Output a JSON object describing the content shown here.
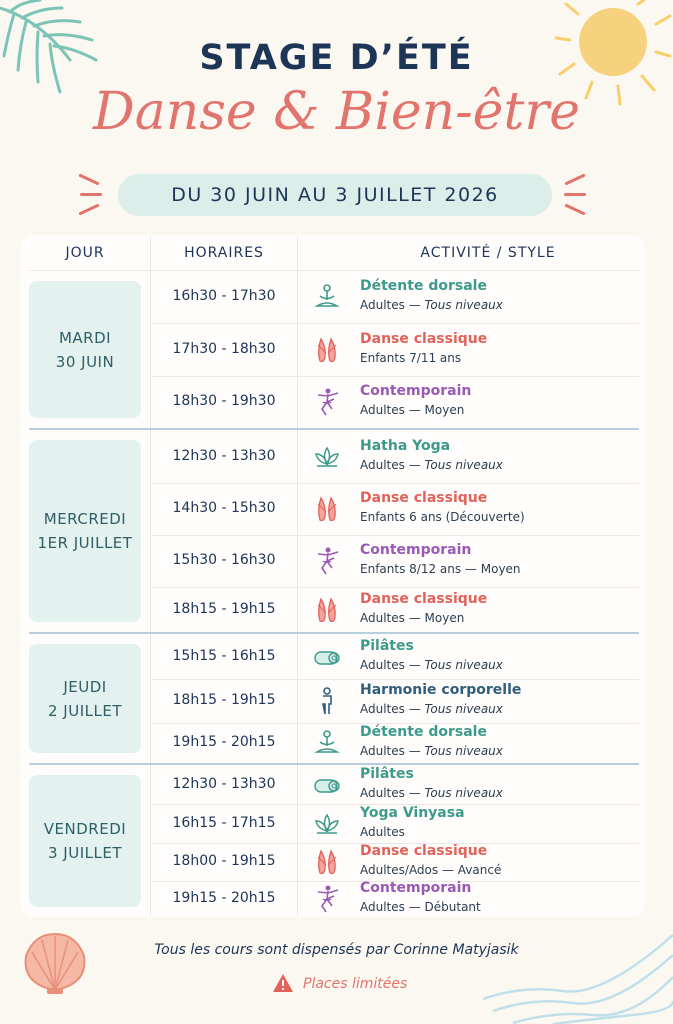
{
  "header": {
    "title": "STAGE D’ÉTÉ",
    "subtitle": "Danse & Bien-être",
    "dates": "DU 30 JUIN AU 3 JUILLET 2026"
  },
  "table": {
    "columns": [
      "JOUR",
      "HORAIRES",
      "ACTIVITÉ / STYLE"
    ],
    "days": [
      {
        "label": [
          "MARDI",
          "30 JUIN"
        ],
        "rows": [
          {
            "time": "16h30 - 17h30",
            "icon": "meditation-icon",
            "name": "Détente dorsale",
            "sub": "Adultes — ",
            "level": "Tous niveaux",
            "color": "#3d9a8b"
          },
          {
            "time": "17h30 - 18h30",
            "icon": "ballet-shoes-icon",
            "name": "Danse classique",
            "sub": "Enfants 7/11 ans",
            "level": "",
            "color": "#e2625a"
          },
          {
            "time": "18h30 - 19h30",
            "icon": "dancer-icon",
            "name": "Contemporain",
            "sub": "Adultes — Moyen",
            "level": "",
            "color": "#9b59b6"
          }
        ]
      },
      {
        "label": [
          "MERCREDI",
          "1ER JUILLET"
        ],
        "rows": [
          {
            "time": "12h30 - 13h30",
            "icon": "lotus-icon",
            "name": "Hatha Yoga",
            "sub": "Adultes — ",
            "level": "Tous niveaux",
            "color": "#3d9a8b"
          },
          {
            "time": "14h30 - 15h30",
            "icon": "ballet-shoes-icon",
            "name": "Danse classique",
            "sub": "Enfants 6 ans (Découverte)",
            "level": "",
            "color": "#e2625a"
          },
          {
            "time": "15h30 - 16h30",
            "icon": "dancer-icon",
            "name": "Contemporain",
            "sub": "Enfants 8/12 ans — Moyen",
            "level": "",
            "color": "#9b59b6"
          },
          {
            "time": "18h15 - 19h15",
            "icon": "ballet-shoes-icon",
            "name": "Danse classique",
            "sub": "Adultes — Moyen",
            "level": "",
            "color": "#e2625a"
          }
        ]
      },
      {
        "label": [
          "JEUDI",
          "2 JUILLET"
        ],
        "rows": [
          {
            "time": "15h15 - 16h15",
            "icon": "yoga-mat-icon",
            "name": "Pilâtes",
            "sub": "Adultes — ",
            "level": "Tous niveaux",
            "color": "#3d9a8b"
          },
          {
            "time": "18h15 - 19h15",
            "icon": "standing-person-icon",
            "name": "Harmonie corporelle",
            "sub": "Adultes — ",
            "level": "Tous niveaux",
            "color": "#2f5d7c"
          },
          {
            "time": "19h15 - 20h15",
            "icon": "meditation-icon",
            "name": "Détente dorsale",
            "sub": "Adultes — ",
            "level": "Tous niveaux",
            "color": "#3d9a8b"
          }
        ]
      },
      {
        "label": [
          "VENDREDI",
          "3 JUILLET"
        ],
        "rows": [
          {
            "time": "12h30 - 13h30",
            "icon": "yoga-mat-icon",
            "name": "Pilâtes",
            "sub": "Adultes — ",
            "level": "Tous niveaux",
            "color": "#3d9a8b"
          },
          {
            "time": "16h15 - 17h15",
            "icon": "lotus-icon",
            "name": "Yoga Vinyasa",
            "sub": "Adultes",
            "level": "",
            "color": "#3d9a8b"
          },
          {
            "time": "18h00 - 19h15",
            "icon": "ballet-shoes-icon",
            "name": "Danse classique",
            "sub": "Adultes/Ados — Avancé",
            "level": "",
            "color": "#e2625a"
          },
          {
            "time": "19h15 - 20h15",
            "icon": "dancer-icon",
            "name": "Contemporain",
            "sub": "Adultes — Débutant",
            "level": "",
            "color": "#9b59b6"
          }
        ]
      }
    ]
  },
  "footer": {
    "note": "Tous les cours sont dispensés par Corinne Matyjasik",
    "limited": "Places limitées"
  },
  "colors": {
    "navy": "#1d3557",
    "coral": "#e2746e",
    "mint": "#e4f2ef",
    "teal": "#3d9a8b",
    "purple": "#9b59b6"
  },
  "decor": [
    "palm-leaf-icon",
    "sun-icon",
    "shell-icon",
    "waves-icon",
    "warning-icon"
  ]
}
